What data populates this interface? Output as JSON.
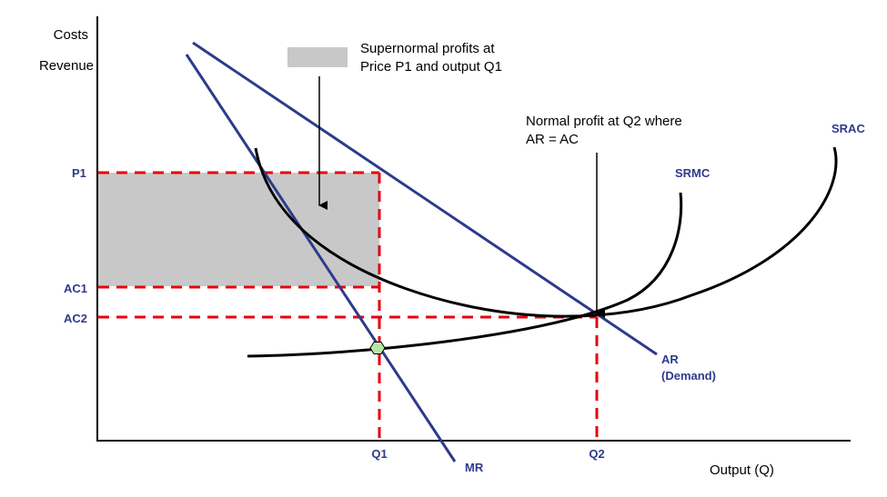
{
  "axes": {
    "y_title_line1": "Costs",
    "y_title_line2": "Revenue",
    "x_title": "Output (Q)"
  },
  "y_ticks": {
    "p1": "P1",
    "ac1": "AC1",
    "ac2": "AC2"
  },
  "x_ticks": {
    "q1": "Q1",
    "q2": "Q2"
  },
  "curves": {
    "mr": "MR",
    "ar_line1": "AR",
    "ar_line2": "(Demand)",
    "srmc": "SRMC",
    "srac": "SRAC"
  },
  "legend": {
    "line1": "Supernormal profits at",
    "line2": "Price P1 and output Q1"
  },
  "annotation": {
    "line1": "Normal profit at Q2 where",
    "line2": "AR = AC"
  },
  "colors": {
    "demand_lines": "#2e3a8c",
    "cost_curves": "#000000",
    "guides": "#e8000b",
    "profit_area": "#c8c8c8",
    "intersection_marker": "#b6e6a6",
    "tick_text": "#2e3a8c"
  }
}
